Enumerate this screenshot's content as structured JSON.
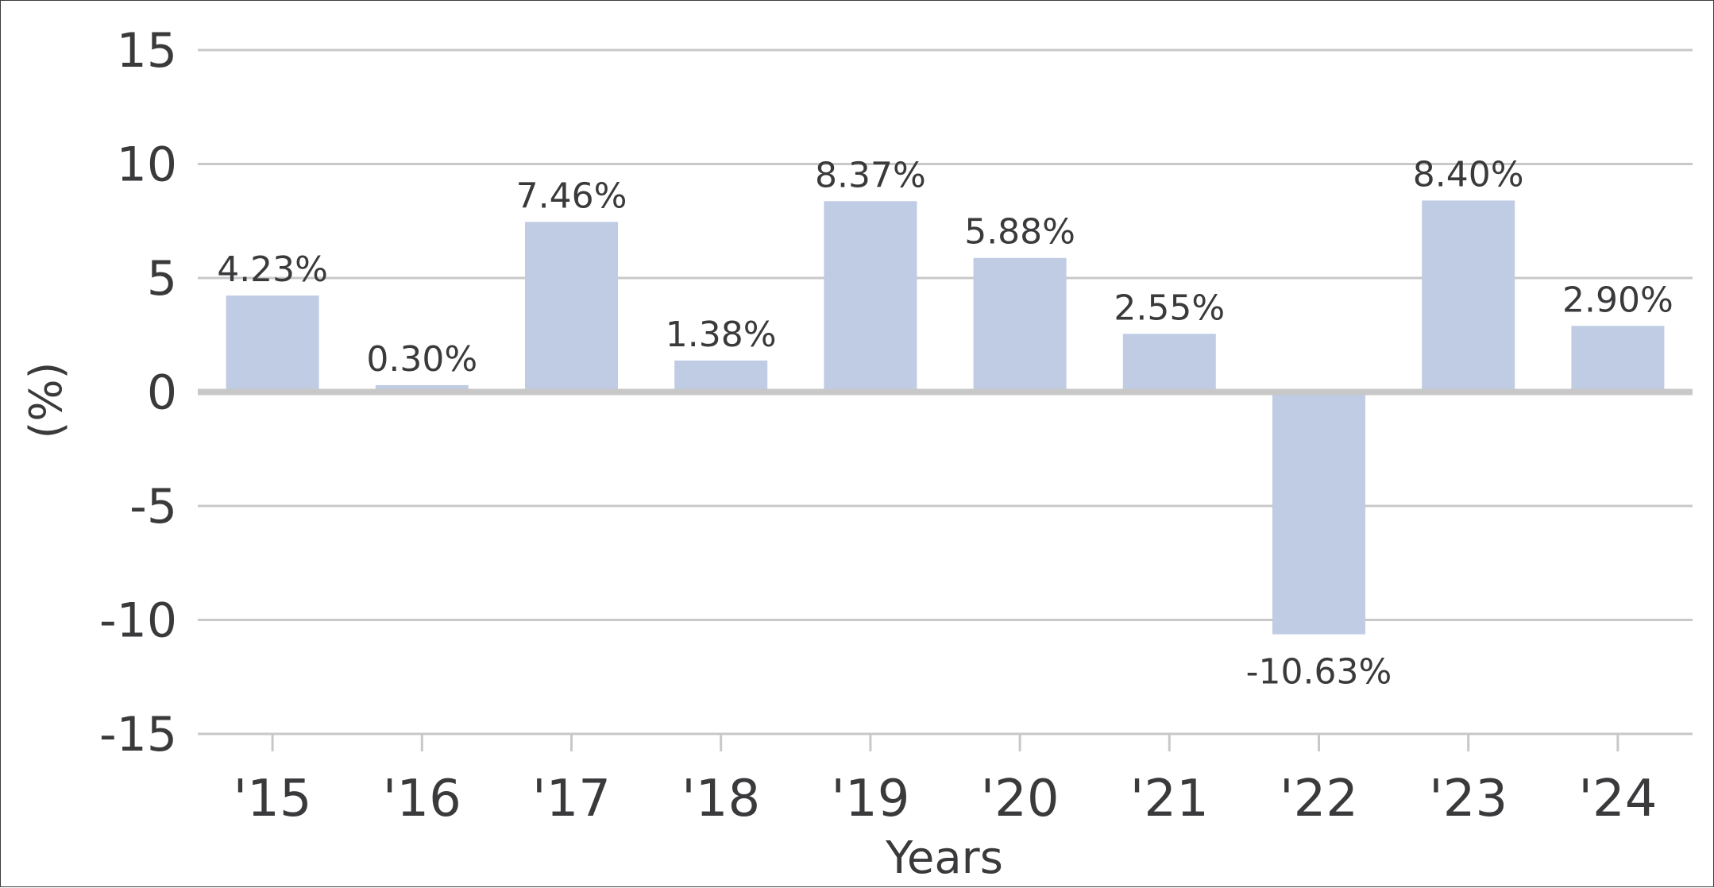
{
  "chart_data": {
    "type": "bar",
    "categories": [
      "'15",
      "'16",
      "'17",
      "'18",
      "'19",
      "'20",
      "'21",
      "'22",
      "'23",
      "'24"
    ],
    "values": [
      4.23,
      0.3,
      7.46,
      1.38,
      8.37,
      5.88,
      2.55,
      -10.63,
      8.4,
      2.9
    ],
    "data_labels": [
      "4.23%",
      "0.30%",
      "7.46%",
      "1.38%",
      "8.37%",
      "5.88%",
      "2.55%",
      "-10.63%",
      "8.40%",
      "2.90%"
    ],
    "xlabel": "Years",
    "ylabel": "(%)",
    "ylim": [
      -15,
      15
    ],
    "yticks": [
      15,
      10,
      5,
      0,
      -5,
      -10,
      -15
    ],
    "ytick_labels": [
      "15",
      "10",
      "5",
      "0",
      "-5",
      "-10",
      "-15"
    ],
    "grid": true,
    "colors": {
      "bar": "#bfcce3",
      "grid": "#c8c8c8",
      "zero_line": "#c8c8c8",
      "text": "#3a3a3c"
    }
  }
}
